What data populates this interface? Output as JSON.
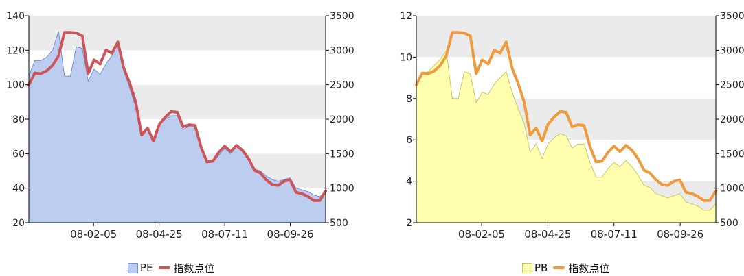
{
  "chart_data": [
    {
      "type": "area",
      "x_ticks": [
        "08-02-05",
        "08-04-25",
        "08-07-11",
        "08-09-26"
      ],
      "y_left": {
        "min": 20,
        "max": 140,
        "ticks": [
          20,
          40,
          60,
          80,
          100,
          120,
          140
        ]
      },
      "y_right": {
        "min": 500,
        "max": 3500,
        "ticks": [
          500,
          1000,
          1500,
          2000,
          2500,
          3000,
          3500
        ]
      },
      "grid": "alternating-bands",
      "legend_position": "bottom-center",
      "series": [
        {
          "name": "PE",
          "axis": "left",
          "kind": "area",
          "color": "#bdcdf0",
          "stroke": "#6f8fd8",
          "values": [
            105,
            114,
            114,
            116,
            120,
            131,
            105,
            105,
            122,
            121,
            102,
            109,
            106,
            112,
            117,
            124,
            108,
            98,
            87,
            71,
            75,
            68,
            77,
            80,
            82,
            82,
            74,
            76,
            76,
            63,
            55,
            55,
            59,
            63,
            60,
            64,
            61,
            56,
            51,
            50,
            47,
            45,
            44,
            45,
            46,
            40,
            39,
            38,
            36,
            35,
            38
          ]
        },
        {
          "name": "指数点位",
          "axis": "right",
          "kind": "line",
          "color": "#cd5458",
          "values": [
            2500,
            2670,
            2660,
            2700,
            2780,
            2920,
            3260,
            3260,
            3250,
            3210,
            2660,
            2860,
            2800,
            3000,
            2960,
            3120,
            2740,
            2520,
            2250,
            1770,
            1870,
            1680,
            1930,
            2030,
            2110,
            2100,
            1890,
            1920,
            1910,
            1600,
            1380,
            1390,
            1520,
            1610,
            1530,
            1620,
            1550,
            1430,
            1260,
            1220,
            1120,
            1050,
            1040,
            1100,
            1120,
            940,
            920,
            880,
            820,
            820,
            960
          ]
        }
      ]
    },
    {
      "type": "area",
      "x_ticks": [
        "08-02-05",
        "08-04-25",
        "08-07-11",
        "08-09-26"
      ],
      "y_left": {
        "min": 2,
        "max": 12,
        "ticks": [
          2,
          4,
          6,
          8,
          10,
          12
        ]
      },
      "y_right": {
        "min": 500,
        "max": 3500,
        "ticks": [
          500,
          1000,
          1500,
          2000,
          2500,
          3000,
          3500
        ]
      },
      "grid": "alternating-bands",
      "legend_position": "bottom-center",
      "series": [
        {
          "name": "PB",
          "axis": "left",
          "kind": "area",
          "color": "#ffffb0",
          "stroke": "#c8c860",
          "values": [
            8.6,
            9.2,
            9.3,
            9.6,
            9.9,
            10.3,
            8.0,
            8.0,
            9.3,
            9.2,
            7.8,
            8.3,
            8.2,
            8.7,
            9.0,
            9.3,
            8.3,
            7.5,
            6.8,
            5.4,
            5.8,
            5.1,
            5.8,
            6.1,
            6.3,
            6.2,
            5.6,
            5.8,
            5.8,
            4.9,
            4.2,
            4.2,
            4.6,
            4.9,
            4.7,
            5.0,
            4.7,
            4.3,
            3.8,
            3.7,
            3.4,
            3.3,
            3.2,
            3.3,
            3.4,
            3.0,
            2.9,
            2.8,
            2.6,
            2.6,
            2.9
          ]
        },
        {
          "name": "指数点位",
          "axis": "right",
          "kind": "line",
          "color": "#ef9a3c",
          "values": [
            2500,
            2670,
            2660,
            2700,
            2780,
            2920,
            3260,
            3260,
            3250,
            3210,
            2660,
            2860,
            2800,
            3000,
            2960,
            3120,
            2740,
            2520,
            2250,
            1770,
            1870,
            1680,
            1930,
            2030,
            2110,
            2100,
            1890,
            1920,
            1910,
            1600,
            1380,
            1390,
            1520,
            1610,
            1530,
            1620,
            1550,
            1430,
            1260,
            1220,
            1120,
            1050,
            1040,
            1100,
            1120,
            940,
            920,
            880,
            820,
            820,
            960
          ]
        }
      ]
    }
  ]
}
